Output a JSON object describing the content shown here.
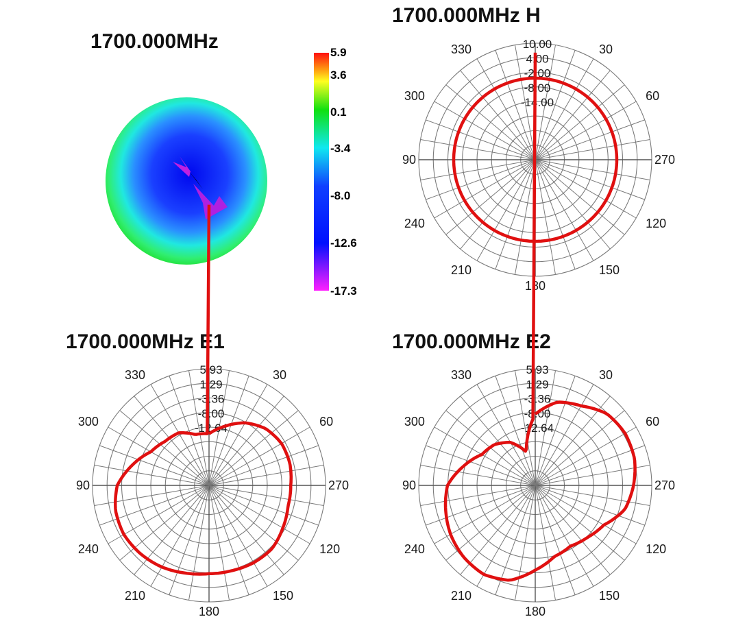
{
  "chart_data": [
    {
      "type": "heatmap",
      "title": "1700.000MHz",
      "colorbar": {
        "ticks": [
          5.9,
          3.6,
          0.1,
          -3.4,
          -8.0,
          -12.6,
          -17.3
        ],
        "tick_labels": [
          "5.9",
          "3.6",
          "0.1",
          "-3.4",
          "-8.0",
          "-12.6",
          "-17.3"
        ],
        "colors": [
          "#ff1010",
          "#ffff20",
          "#10e010",
          "#10e8f0",
          "#1040ff",
          "#0010ff",
          "#ff20ff"
        ]
      }
    },
    {
      "type": "polar",
      "title": "1700.000MHz  H",
      "angle_labels": [
        "180",
        "210",
        "240",
        "270",
        "300",
        "330",
        "30",
        "60",
        "90",
        "120",
        "150"
      ],
      "radial_labels": [
        "10.00",
        "4.00",
        "-2.00",
        "-8.00",
        "-14.00"
      ],
      "rlim": [
        -20,
        10
      ],
      "series_color": "#e01010",
      "series": [
        {
          "angles": [
            0,
            30,
            60,
            90,
            120,
            150,
            180,
            210,
            240,
            270,
            300,
            330
          ],
          "values": [
            1,
            1,
            1,
            1,
            1,
            1,
            1,
            1,
            1,
            1,
            1,
            1
          ]
        }
      ]
    },
    {
      "type": "polar",
      "title": "1700.000MHz  E1",
      "angle_labels": [
        "180",
        "210",
        "240",
        "270",
        "300",
        "330",
        "30",
        "60",
        "90",
        "120",
        "150"
      ],
      "radial_labels": [
        "5.93",
        "1.29",
        "-3.36",
        "-8.00",
        "-12.64"
      ],
      "rlim": [
        -17.28,
        5.93
      ],
      "series_color": "#e01010",
      "series": [
        {
          "angles": [
            0,
            15,
            30,
            45,
            60,
            75,
            90,
            105,
            120,
            135,
            150,
            165,
            180,
            195,
            210,
            225,
            240,
            255,
            270,
            285,
            300,
            315,
            330,
            345
          ],
          "values": [
            -7.0,
            -5.1,
            -2.9,
            -1.3,
            -0.6,
            -0.6,
            -1.0,
            -1.0,
            -0.3,
            0.5,
            0.5,
            0.3,
            0.3,
            0.8,
            1.5,
            2.0,
            2.3,
            2.0,
            1.0,
            -1.5,
            -3.9,
            -4.9,
            -5.2,
            -6.8
          ]
        }
      ]
    },
    {
      "type": "polar",
      "title": "1700.000MHz  E2",
      "angle_labels": [
        "180",
        "210",
        "240",
        "270",
        "300",
        "330",
        "30",
        "60",
        "90",
        "120",
        "150"
      ],
      "radial_labels": [
        "5.93",
        "1.29",
        "-3.36",
        "-8.00",
        "-12.64"
      ],
      "rlim": [
        -17.28,
        5.93
      ],
      "series_color": "#e01010",
      "series": [
        {
          "angles": [
            0,
            15,
            30,
            45,
            60,
            75,
            90,
            105,
            120,
            135,
            150,
            165,
            180,
            195,
            210,
            225,
            240,
            255,
            270,
            285,
            300,
            315,
            330,
            345
          ],
          "values": [
            -3.1,
            -0.1,
            1.0,
            2.9,
            3.4,
            3.2,
            2.3,
            1.2,
            -1.5,
            -2.6,
            -3.3,
            -2.6,
            -0.4,
            2.3,
            3.2,
            2.9,
            2.2,
            1.2,
            0.2,
            -2.5,
            -5.0,
            -5.8,
            -7.4,
            -10.4
          ]
        }
      ]
    }
  ]
}
